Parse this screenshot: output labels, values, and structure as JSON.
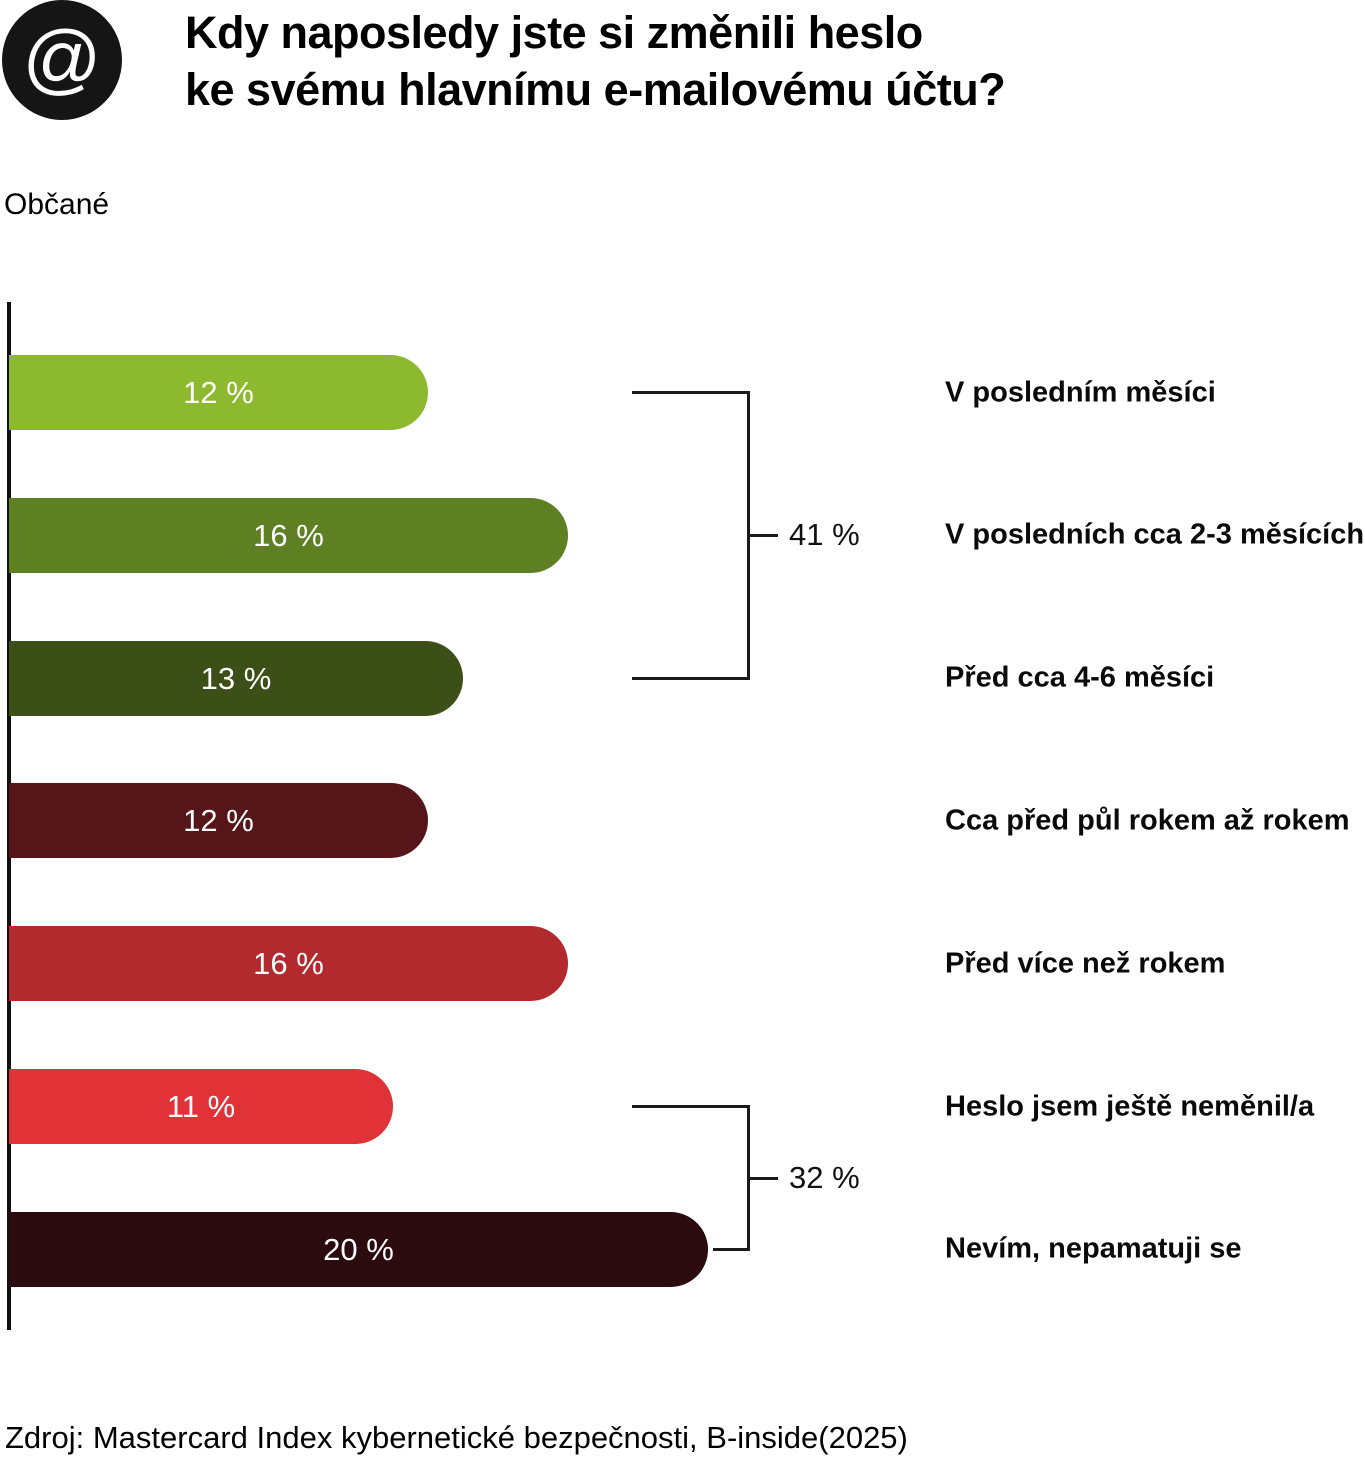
{
  "header": {
    "icon_glyph": "@",
    "title_line1": "Kdy naposledy jste si změnili heslo",
    "title_line2": "ke svému hlavnímu e-mailovému účtu?",
    "subtitle": "Občané"
  },
  "footer": {
    "source": "Zdroj: Mastercard Index kybernetické bezpečnosti, B-inside(2025)"
  },
  "chart_data": {
    "type": "bar",
    "orientation": "horizontal",
    "title": "Kdy naposledy jste si změnili heslo ke svému hlavnímu e-mailovému účtu?",
    "subtitle": "Občané",
    "categories": [
      "V posledním měsíci",
      "V posledních cca 2-3 měsících",
      "Před cca 4-6 měsíci",
      "Cca před půl rokem až rokem",
      "Před více než rokem",
      "Heslo jsem ještě neměnil/a",
      "Nevím, nepamatuji se"
    ],
    "values": [
      12,
      16,
      13,
      12,
      16,
      11,
      20
    ],
    "value_labels": [
      "12 %",
      "16 %",
      "13 %",
      "12 %",
      "16 %",
      "11 %",
      "20 %"
    ],
    "bar_colors": [
      "#8CB92E",
      "#5E8023",
      "#3C4F16",
      "#561519",
      "#B22A2E",
      "#E03237",
      "#2B0B0E"
    ],
    "xlim": [
      0,
      20
    ],
    "grid": false,
    "legend": "none",
    "groups": [
      {
        "label": "41 %",
        "sum": 41,
        "from_index": 0,
        "to_index": 2
      },
      {
        "label": "32 %",
        "sum": 32,
        "from_index": 5,
        "to_index": 6
      }
    ]
  }
}
